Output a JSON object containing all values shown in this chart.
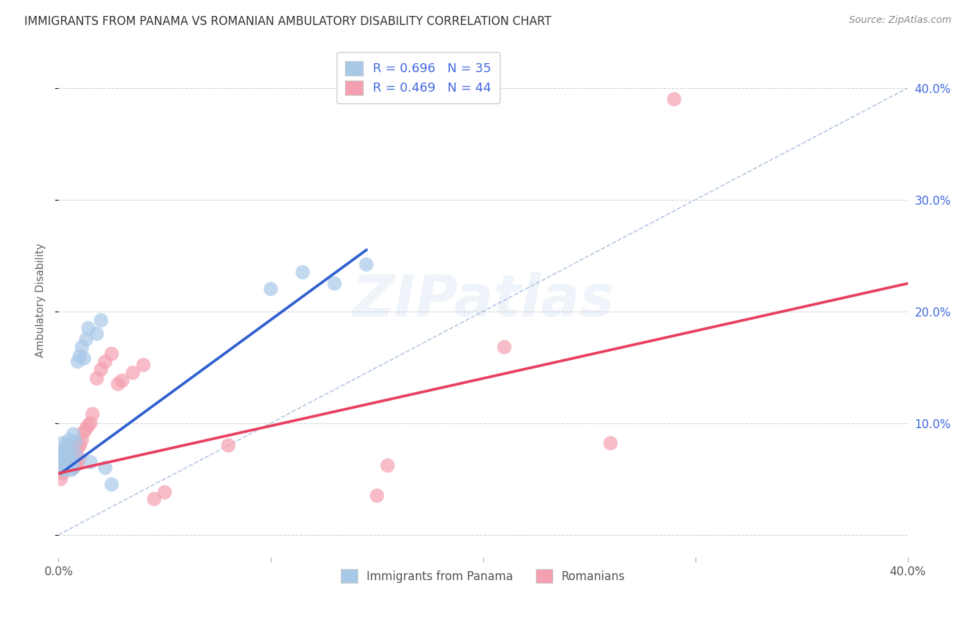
{
  "title": "IMMIGRANTS FROM PANAMA VS ROMANIAN AMBULATORY DISABILITY CORRELATION CHART",
  "source": "Source: ZipAtlas.com",
  "ylabel": "Ambulatory Disability",
  "xlim": [
    0,
    0.4
  ],
  "ylim": [
    -0.02,
    0.44
  ],
  "blue_scatter_color": "#a8c8e8",
  "pink_scatter_color": "#f4a0b0",
  "blue_line_color": "#3060d0",
  "pink_line_color": "#e84060",
  "diag_color": "#a0b8d8",
  "watermark": "ZIPatlas",
  "panama_x": [
    0.001,
    0.001,
    0.002,
    0.002,
    0.002,
    0.003,
    0.003,
    0.003,
    0.004,
    0.004,
    0.004,
    0.005,
    0.005,
    0.005,
    0.006,
    0.006,
    0.007,
    0.007,
    0.008,
    0.008,
    0.009,
    0.01,
    0.011,
    0.012,
    0.013,
    0.014,
    0.015,
    0.018,
    0.02,
    0.022,
    0.025,
    0.1,
    0.115,
    0.13,
    0.145
  ],
  "panama_y": [
    0.06,
    0.07,
    0.065,
    0.075,
    0.082,
    0.058,
    0.068,
    0.078,
    0.06,
    0.07,
    0.08,
    0.062,
    0.072,
    0.085,
    0.065,
    0.058,
    0.06,
    0.09,
    0.072,
    0.083,
    0.155,
    0.16,
    0.168,
    0.158,
    0.175,
    0.185,
    0.065,
    0.18,
    0.192,
    0.06,
    0.045,
    0.22,
    0.235,
    0.225,
    0.242
  ],
  "romanian_x": [
    0.001,
    0.001,
    0.002,
    0.002,
    0.003,
    0.003,
    0.003,
    0.004,
    0.004,
    0.005,
    0.005,
    0.005,
    0.006,
    0.006,
    0.007,
    0.007,
    0.008,
    0.008,
    0.009,
    0.009,
    0.01,
    0.01,
    0.011,
    0.012,
    0.013,
    0.014,
    0.015,
    0.016,
    0.018,
    0.02,
    0.022,
    0.025,
    0.028,
    0.03,
    0.035,
    0.04,
    0.045,
    0.05,
    0.08,
    0.15,
    0.155,
    0.21,
    0.26,
    0.29
  ],
  "romanian_y": [
    0.05,
    0.06,
    0.055,
    0.065,
    0.058,
    0.068,
    0.075,
    0.06,
    0.07,
    0.062,
    0.072,
    0.08,
    0.065,
    0.075,
    0.06,
    0.068,
    0.062,
    0.072,
    0.065,
    0.078,
    0.068,
    0.08,
    0.085,
    0.092,
    0.095,
    0.098,
    0.1,
    0.108,
    0.14,
    0.148,
    0.155,
    0.162,
    0.135,
    0.138,
    0.145,
    0.152,
    0.032,
    0.038,
    0.08,
    0.035,
    0.062,
    0.168,
    0.082,
    0.39
  ],
  "blue_trend_x0": 0.001,
  "blue_trend_x1": 0.145,
  "blue_trend_y0": 0.055,
  "blue_trend_y1": 0.255,
  "pink_trend_x0": 0.0,
  "pink_trend_x1": 0.4,
  "pink_trend_y0": 0.055,
  "pink_trend_y1": 0.225
}
